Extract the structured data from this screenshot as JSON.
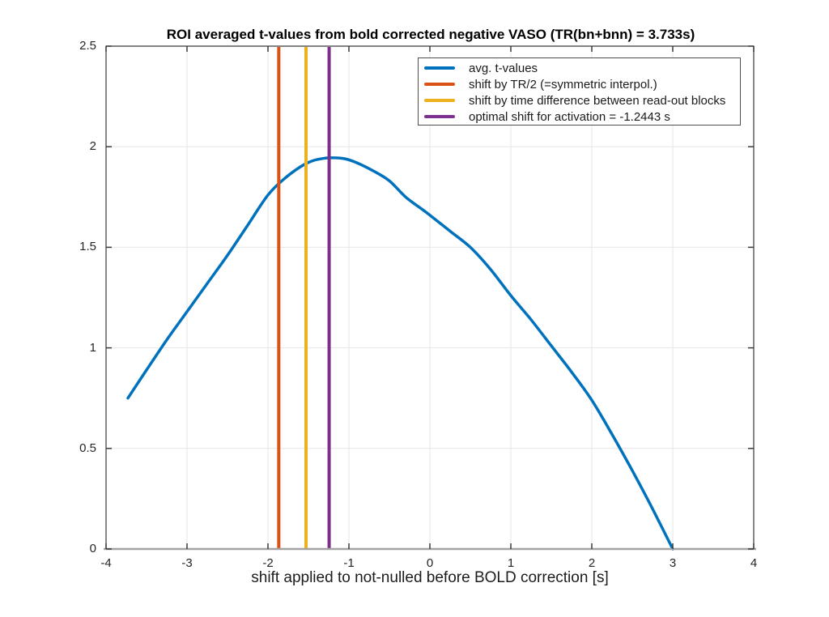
{
  "chart_data": {
    "type": "line",
    "title": "ROI averaged t-values from bold corrected negative VASO (TR(bn+bnn) = 3.733s)",
    "xlabel": "shift applied to not-nulled before BOLD correction [s]",
    "ylabel": "",
    "xlim": [
      -4,
      4
    ],
    "ylim": [
      0,
      2.5
    ],
    "xticks": [
      -4,
      -3,
      -2,
      -1,
      0,
      1,
      2,
      3,
      4
    ],
    "yticks": [
      0,
      0.5,
      1,
      1.5,
      2,
      2.5
    ],
    "grid": true,
    "legend_position": "upper right",
    "series": [
      {
        "name": "avg. t-values",
        "color": "#0072BD",
        "points": [
          [
            -3.73,
            0.75
          ],
          [
            -3.5,
            0.89
          ],
          [
            -3.25,
            1.04
          ],
          [
            -3.0,
            1.18
          ],
          [
            -2.75,
            1.32
          ],
          [
            -2.5,
            1.46
          ],
          [
            -2.25,
            1.61
          ],
          [
            -2.0,
            1.76
          ],
          [
            -1.8,
            1.84
          ],
          [
            -1.6,
            1.9
          ],
          [
            -1.45,
            1.93
          ],
          [
            -1.3,
            1.943
          ],
          [
            -1.2,
            1.945
          ],
          [
            -1.05,
            1.94
          ],
          [
            -0.9,
            1.92
          ],
          [
            -0.7,
            1.88
          ],
          [
            -0.5,
            1.83
          ],
          [
            -0.3,
            1.75
          ],
          [
            -0.1,
            1.69
          ],
          [
            0.0,
            1.66
          ],
          [
            0.25,
            1.58
          ],
          [
            0.5,
            1.5
          ],
          [
            0.75,
            1.39
          ],
          [
            1.0,
            1.26
          ],
          [
            1.25,
            1.14
          ],
          [
            1.5,
            1.01
          ],
          [
            1.75,
            0.88
          ],
          [
            2.0,
            0.74
          ],
          [
            2.25,
            0.57
          ],
          [
            2.5,
            0.39
          ],
          [
            2.75,
            0.2
          ],
          [
            3.0,
            0.0
          ]
        ]
      }
    ],
    "vlines": [
      {
        "label": "shift by TR/2 (=symmetric interpol.)",
        "x": -1.8665,
        "color": "#D95319"
      },
      {
        "label": "shift by time difference between read-out blocks",
        "x": -1.53,
        "color": "#EDB120"
      },
      {
        "label": "optimal shift for activation = -1.2443 s",
        "x": -1.2443,
        "color": "#7E2F8E"
      }
    ],
    "legend": [
      {
        "label": "avg. t-values",
        "color": "#0072BD"
      },
      {
        "label": "shift by TR/2 (=symmetric interpol.)",
        "color": "#D95319"
      },
      {
        "label": "shift by time difference between read-out blocks",
        "color": "#EDB120"
      },
      {
        "label": "optimal shift for activation = -1.2443 s",
        "color": "#7E2F8E"
      }
    ],
    "style": {
      "grid_color": "#e6e6e6",
      "axis_color": "#3a3a3a",
      "baseline_color": "#a3a3a3",
      "background": "#ffffff"
    }
  }
}
